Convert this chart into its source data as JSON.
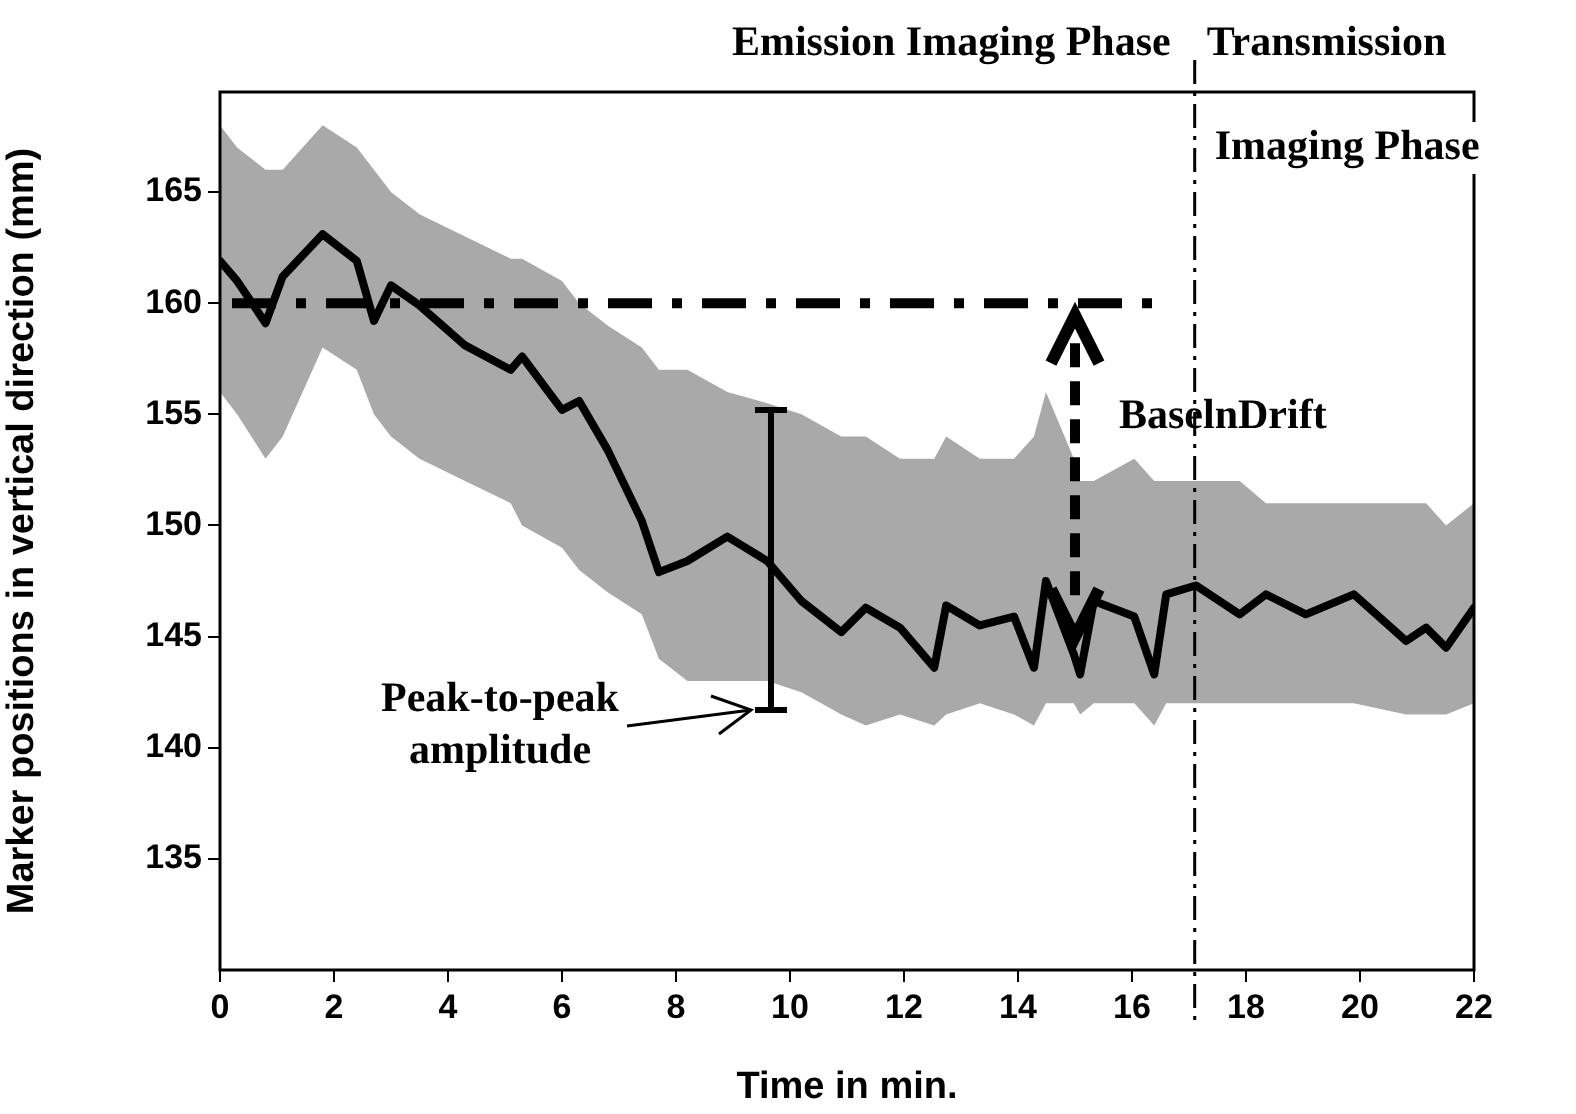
{
  "chart_data": {
    "type": "line",
    "xlabel": "Time in min.",
    "ylabel": "Marker positions in vertical direction (mm)",
    "x": [
      0,
      0.3,
      0.8,
      1.1,
      1.8,
      2.4,
      2.7,
      3.0,
      3.5,
      4.3,
      5.1,
      5.3,
      6.0,
      6.3,
      6.8,
      7.4,
      7.7,
      8.2,
      8.9,
      9.6,
      10.2,
      10.9,
      11.33,
      11.93,
      12.53,
      12.74,
      13.33,
      13.93,
      14.28,
      14.49,
      14.98,
      15.09,
      15.33,
      16.04,
      16.39,
      16.6,
      17.12,
      17.89,
      18.35,
      19.05,
      19.89,
      20.81,
      21.16,
      21.51,
      22
    ],
    "series": [
      {
        "color": "#000000",
        "values": [
          161.9,
          161,
          159.1,
          161.2,
          163.1,
          161.9,
          159.2,
          160.8,
          159.9,
          158.1,
          157,
          157.6,
          155.2,
          155.6,
          153.4,
          150.2,
          147.9,
          148.4,
          149.5,
          148.4,
          146.6,
          145.2,
          146.3,
          145.4,
          143.6,
          146.4,
          145.5,
          145.9,
          143.6,
          147.5,
          144.2,
          143.3,
          146.6,
          145.9,
          143.3,
          146.9,
          147.3,
          146,
          146.9,
          146,
          146.9,
          144.8,
          145.4,
          144.5,
          146.3
        ],
        "lower": [
          156,
          155,
          153,
          154,
          158,
          157,
          155,
          154,
          153,
          152,
          151,
          150,
          149,
          148,
          147,
          146,
          144,
          143,
          143,
          143,
          142.5,
          141.5,
          141,
          141.5,
          141,
          141.5,
          142,
          141.5,
          141,
          142,
          142,
          141.5,
          142,
          142,
          141,
          142,
          142,
          142,
          142,
          142,
          142,
          141.5,
          141.5,
          141.5,
          142
        ],
        "upper": [
          168,
          167,
          166,
          166,
          168,
          167,
          166,
          165,
          164,
          163,
          162,
          162,
          161,
          160,
          159,
          158,
          157,
          157,
          156,
          155.5,
          155,
          154,
          154,
          153,
          153,
          154,
          153,
          153,
          154,
          156,
          153,
          152,
          152,
          153,
          152,
          152,
          152,
          152,
          151,
          151,
          151,
          151,
          151,
          150,
          151
        ]
      }
    ],
    "xlim": [
      0,
      22
    ],
    "xticks": [
      0,
      2,
      4,
      6,
      8,
      10,
      12,
      14,
      16,
      18,
      20,
      22
    ],
    "ylim": [
      130,
      169.5
    ],
    "yticks": [
      135,
      140,
      145,
      150,
      155,
      160,
      165
    ],
    "ref_lines": [
      {
        "axis": "y",
        "value": 160,
        "line_style": "dashed"
      },
      {
        "axis": "x",
        "value": 17.1,
        "line_style": "dashed"
      }
    ],
    "annotations": [
      "Emission Imaging Phase",
      "Transmission Imaging Phase",
      {
        "text": "BaselnDrift",
        "x": 15,
        "y": 160
      },
      "Peak-to-peak amplitude"
    ],
    "grid": false,
    "legend": false,
    "marker": "none",
    "line_style": "solid"
  }
}
